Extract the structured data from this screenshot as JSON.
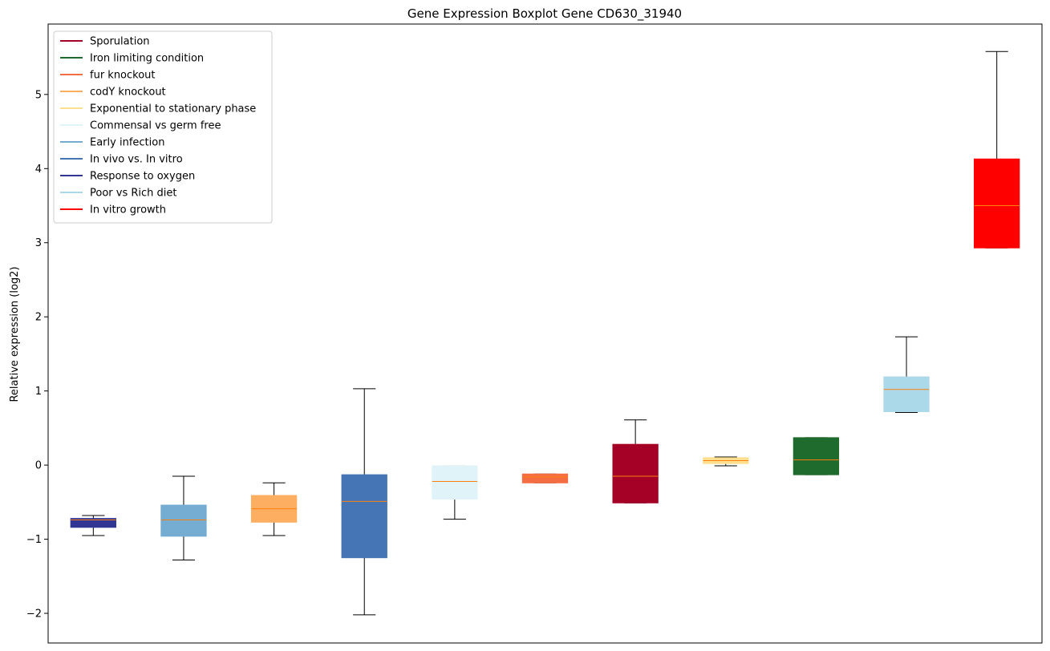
{
  "chart_data": {
    "type": "boxplot",
    "title": "Gene Expression Boxplot Gene CD630_31940",
    "xlabel": "",
    "ylabel": "Relative expression (log2)",
    "ylim": [
      -2.4,
      5.95
    ],
    "yticks": [
      -2,
      -1,
      0,
      1,
      2,
      3,
      4,
      5
    ],
    "ytick_labels": [
      "−2",
      "−1",
      "0",
      "1",
      "2",
      "3",
      "4",
      "5"
    ],
    "grid": false,
    "legend_position": "top-left",
    "legend": [
      {
        "name": "Sporulation",
        "color": "#a50026"
      },
      {
        "name": "Iron limiting condition",
        "color": "#1f6b2e"
      },
      {
        "name": "fur knockout",
        "color": "#f46d43"
      },
      {
        "name": "codY knockout",
        "color": "#fdae61"
      },
      {
        "name": "Exponential to stationary phase",
        "color": "#fee090"
      },
      {
        "name": "Commensal vs germ free",
        "color": "#e0f3f8"
      },
      {
        "name": "Early infection",
        "color": "#74add1"
      },
      {
        "name": "In vivo vs. In vitro",
        "color": "#4575b4"
      },
      {
        "name": "Response to oxygen",
        "color": "#313695"
      },
      {
        "name": "Poor vs Rich diet",
        "color": "#abd9e9"
      },
      {
        "name": "In vitro growth",
        "color": "#ff0000"
      }
    ],
    "boxes": [
      {
        "condition": "Response to oxygen",
        "color": "#313695",
        "whisker_low": -0.95,
        "q1": -0.84,
        "median": -0.74,
        "q3": -0.72,
        "whisker_high": -0.68
      },
      {
        "condition": "Early infection",
        "color": "#74add1",
        "whisker_low": -1.28,
        "q1": -0.96,
        "median": -0.74,
        "q3": -0.54,
        "whisker_high": -0.15
      },
      {
        "condition": "codY knockout",
        "color": "#fdae61",
        "whisker_low": -0.95,
        "q1": -0.77,
        "median": -0.59,
        "q3": -0.41,
        "whisker_high": -0.24
      },
      {
        "condition": "In vivo vs. In vitro",
        "color": "#4575b4",
        "whisker_low": -2.02,
        "q1": -1.25,
        "median": -0.49,
        "q3": -0.13,
        "whisker_high": 1.03
      },
      {
        "condition": "Commensal vs germ free",
        "color": "#e0f3f8",
        "whisker_low": -0.73,
        "q1": -0.46,
        "median": -0.22,
        "q3": -0.01,
        "whisker_high": -0.01
      },
      {
        "condition": "fur knockout",
        "color": "#f46d43",
        "whisker_low": -0.24,
        "q1": -0.24,
        "median": -0.16,
        "q3": -0.12,
        "whisker_high": -0.12
      },
      {
        "condition": "Sporulation",
        "color": "#a50026",
        "whisker_low": -0.51,
        "q1": -0.51,
        "median": -0.15,
        "q3": 0.28,
        "whisker_high": 0.61
      },
      {
        "condition": "Exponential to stationary phase",
        "color": "#fee090",
        "whisker_low": -0.01,
        "q1": 0.02,
        "median": 0.06,
        "q3": 0.1,
        "whisker_high": 0.11
      },
      {
        "condition": "Iron limiting condition",
        "color": "#1f6b2e",
        "whisker_low": -0.13,
        "q1": -0.13,
        "median": 0.07,
        "q3": 0.37,
        "whisker_high": 0.37
      },
      {
        "condition": "Poor vs Rich diet",
        "color": "#abd9e9",
        "whisker_low": 0.71,
        "q1": 0.72,
        "median": 1.02,
        "q3": 1.19,
        "whisker_high": 1.73
      },
      {
        "condition": "In vitro growth",
        "color": "#ff0000",
        "whisker_low": 2.93,
        "q1": 2.93,
        "median": 3.5,
        "q3": 4.13,
        "whisker_high": 5.58
      }
    ],
    "median_color": "#ff7f0e"
  }
}
